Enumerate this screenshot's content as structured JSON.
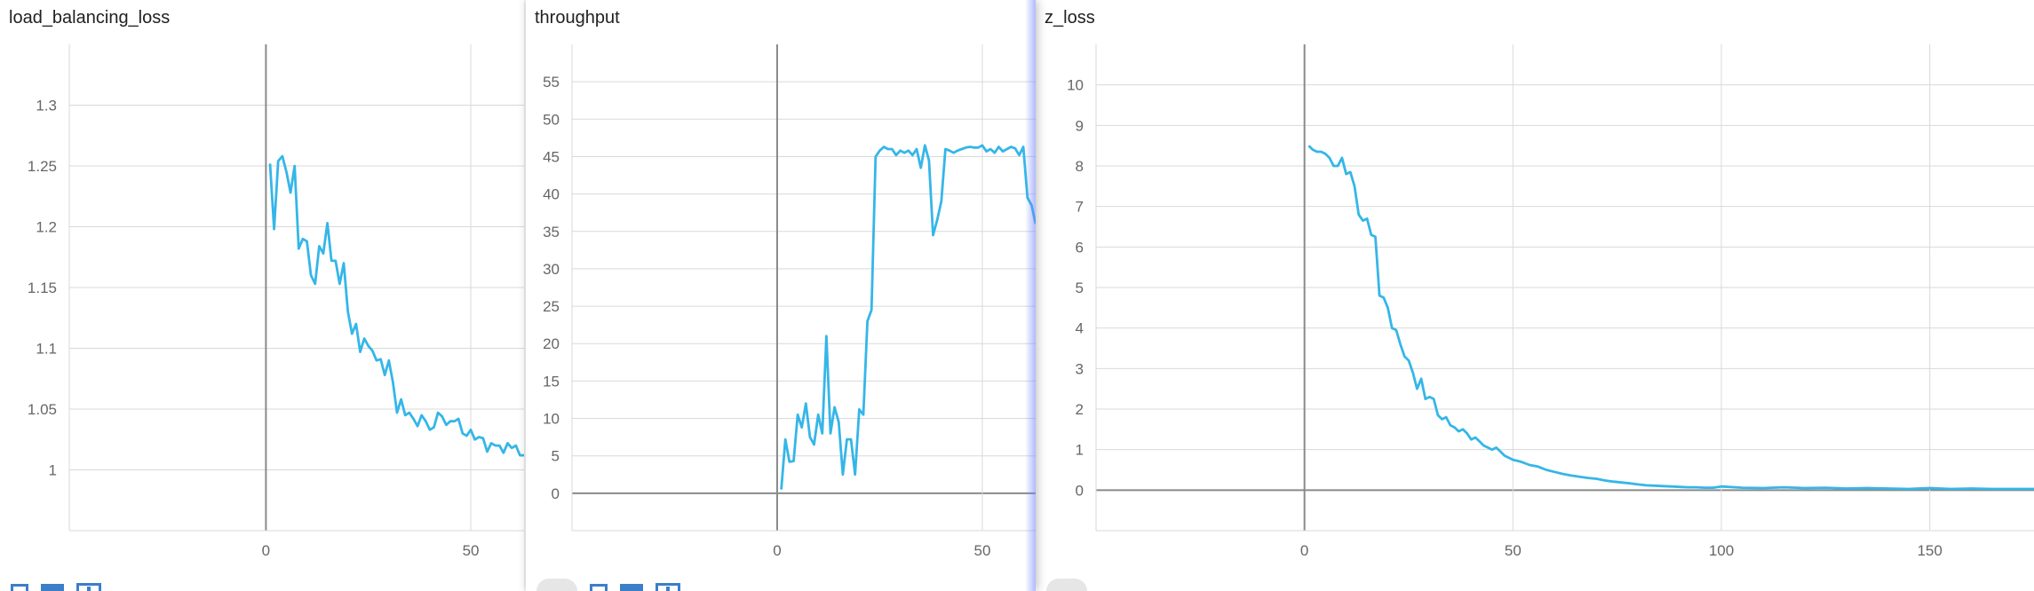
{
  "colors": {
    "line": "#35b6e8",
    "grid": "#d9d9d9",
    "zero_axis": "#8a8a8a",
    "toolbar_icon": "#3d7ec8"
  },
  "toolbar_icons": [
    "expand-icon",
    "data-table-icon",
    "fit-domain-icon"
  ],
  "panels": [
    {
      "title": "load_balancing_loss"
    },
    {
      "title": "throughput"
    },
    {
      "title": "z_loss"
    }
  ],
  "chart_data": [
    {
      "type": "line",
      "title": "load_balancing_loss",
      "xlim": [
        -48,
        63
      ],
      "ylim": [
        0.95,
        1.35
      ],
      "xticks": [
        0,
        50
      ],
      "yticks": [
        1,
        1.05,
        1.1,
        1.15,
        1.2,
        1.25,
        1.3
      ],
      "ytick_labels": [
        "1",
        "1.05",
        "1.1",
        "1.15",
        "1.2",
        "1.25",
        "1.3"
      ],
      "grid": true,
      "series": [
        {
          "x": [
            1,
            2,
            3,
            4,
            5,
            6,
            7,
            8,
            9,
            10,
            11,
            12,
            13,
            14,
            15,
            16,
            17,
            18,
            19,
            20,
            21,
            22,
            23,
            24,
            25,
            26,
            27,
            28,
            29,
            30,
            31,
            32,
            33,
            34,
            35,
            36,
            37,
            38,
            39,
            40,
            41,
            42,
            43,
            44,
            45,
            46,
            47,
            48,
            49,
            50,
            51,
            52,
            53,
            54,
            55,
            56,
            57,
            58,
            59,
            60,
            61,
            62,
            63
          ],
          "y": [
            1.252,
            1.198,
            1.254,
            1.258,
            1.245,
            1.228,
            1.25,
            1.182,
            1.19,
            1.188,
            1.16,
            1.153,
            1.184,
            1.178,
            1.203,
            1.172,
            1.172,
            1.153,
            1.17,
            1.13,
            1.112,
            1.12,
            1.097,
            1.108,
            1.102,
            1.098,
            1.09,
            1.091,
            1.078,
            1.09,
            1.072,
            1.047,
            1.058,
            1.045,
            1.047,
            1.042,
            1.036,
            1.045,
            1.04,
            1.033,
            1.035,
            1.047,
            1.044,
            1.037,
            1.04,
            1.04,
            1.042,
            1.03,
            1.028,
            1.033,
            1.025,
            1.027,
            1.026,
            1.015,
            1.022,
            1.02,
            1.02,
            1.014,
            1.022,
            1.018,
            1.02,
            1.012,
            1.012
          ]
        }
      ]
    },
    {
      "type": "line",
      "title": "throughput",
      "xlim": [
        -50,
        63
      ],
      "ylim": [
        -5,
        60
      ],
      "xticks": [
        0,
        50
      ],
      "yticks": [
        0,
        5,
        10,
        15,
        20,
        25,
        30,
        35,
        40,
        45,
        50,
        55
      ],
      "grid": true,
      "series": [
        {
          "x": [
            1,
            2,
            3,
            4,
            5,
            6,
            7,
            8,
            9,
            10,
            11,
            12,
            13,
            14,
            15,
            16,
            17,
            18,
            19,
            20,
            21,
            22,
            23,
            24,
            25,
            26,
            27,
            28,
            29,
            30,
            31,
            32,
            33,
            34,
            35,
            36,
            37,
            38,
            39,
            40,
            41,
            42,
            43,
            44,
            45,
            46,
            47,
            48,
            49,
            50,
            51,
            52,
            53,
            54,
            55,
            56,
            57,
            58,
            59,
            60,
            61,
            62,
            63
          ],
          "y": [
            0.5,
            7.2,
            4.2,
            4.3,
            10.5,
            8.8,
            12,
            7.5,
            6.5,
            10.5,
            8,
            21,
            8,
            11.5,
            9.5,
            2.5,
            7.2,
            7.2,
            2.5,
            11.2,
            10.5,
            23,
            24.5,
            45,
            45.8,
            46.3,
            46,
            46,
            45.2,
            45.8,
            45.5,
            45.8,
            45.2,
            46,
            43.5,
            46.5,
            44.5,
            34.5,
            36.5,
            39,
            46,
            45.8,
            45.5,
            45.8,
            46,
            46.2,
            46.3,
            46.2,
            46.2,
            46.5,
            45.7,
            46,
            45.5,
            46.3,
            45.7,
            46,
            46.3,
            46.1,
            45.2,
            46.3,
            39.5,
            38.5,
            36
          ]
        }
      ]
    },
    {
      "type": "line",
      "title": "z_loss",
      "xlim": [
        -50,
        175
      ],
      "ylim": [
        -1,
        11
      ],
      "xticks": [
        0,
        50,
        100,
        150
      ],
      "yticks": [
        0,
        1,
        2,
        3,
        4,
        5,
        6,
        7,
        8,
        9,
        10
      ],
      "grid": true,
      "series": [
        {
          "x": [
            1,
            2,
            3,
            4,
            5,
            6,
            7,
            8,
            9,
            10,
            11,
            12,
            13,
            14,
            15,
            16,
            17,
            18,
            19,
            20,
            21,
            22,
            23,
            24,
            25,
            26,
            27,
            28,
            29,
            30,
            31,
            32,
            33,
            34,
            35,
            36,
            37,
            38,
            39,
            40,
            41,
            42,
            43,
            44,
            45,
            46,
            47,
            48,
            49,
            50,
            52,
            54,
            56,
            58,
            60,
            62,
            64,
            66,
            68,
            70,
            72,
            74,
            76,
            78,
            80,
            82,
            84,
            86,
            88,
            90,
            92,
            94,
            96,
            98,
            100,
            105,
            110,
            115,
            120,
            125,
            130,
            135,
            140,
            145,
            150,
            155,
            160,
            165,
            170,
            175
          ],
          "y": [
            8.5,
            8.4,
            8.35,
            8.35,
            8.3,
            8.2,
            8.0,
            8.0,
            8.2,
            7.8,
            7.85,
            7.5,
            6.8,
            6.65,
            6.7,
            6.3,
            6.25,
            4.8,
            4.75,
            4.5,
            4.0,
            3.95,
            3.6,
            3.3,
            3.2,
            2.9,
            2.5,
            2.75,
            2.25,
            2.3,
            2.25,
            1.85,
            1.75,
            1.8,
            1.6,
            1.55,
            1.45,
            1.5,
            1.4,
            1.25,
            1.3,
            1.2,
            1.1,
            1.05,
            1.0,
            1.05,
            0.95,
            0.85,
            0.8,
            0.75,
            0.7,
            0.62,
            0.58,
            0.5,
            0.45,
            0.4,
            0.36,
            0.33,
            0.3,
            0.28,
            0.24,
            0.21,
            0.19,
            0.17,
            0.14,
            0.12,
            0.11,
            0.1,
            0.09,
            0.08,
            0.07,
            0.07,
            0.06,
            0.06,
            0.09,
            0.06,
            0.05,
            0.07,
            0.05,
            0.06,
            0.04,
            0.05,
            0.04,
            0.03,
            0.05,
            0.03,
            0.04,
            0.03,
            0.03,
            0.03
          ]
        }
      ]
    }
  ]
}
